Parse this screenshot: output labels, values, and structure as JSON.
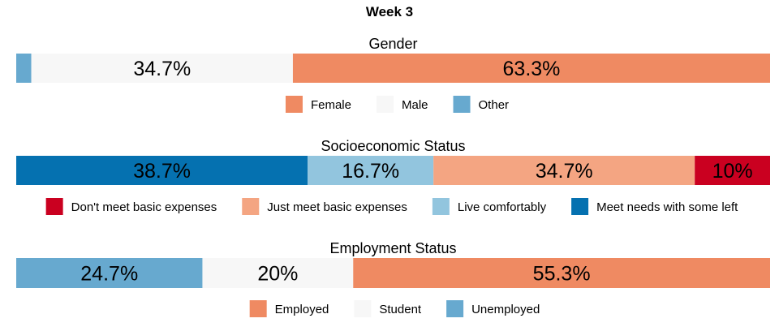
{
  "chart_data": {
    "type": "bar",
    "orientation": "horizontal-stacked-100",
    "title": "Week 3",
    "panels": [
      {
        "title": "Gender",
        "segments": [
          {
            "name": "Other",
            "value": 2.0,
            "label": "",
            "color": "#67a9cf"
          },
          {
            "name": "Male",
            "value": 34.7,
            "label": "34.7%",
            "color": "#f7f7f7"
          },
          {
            "name": "Female",
            "value": 63.3,
            "label": "63.3%",
            "color": "#ef8a62"
          }
        ],
        "legend": [
          {
            "name": "Female",
            "color": "#ef8a62"
          },
          {
            "name": "Male",
            "color": "#f7f7f7"
          },
          {
            "name": "Other",
            "color": "#67a9cf"
          }
        ]
      },
      {
        "title": "Socioeconomic Status",
        "segments": [
          {
            "name": "Meet needs with some left",
            "value": 38.7,
            "label": "38.7%",
            "color": "#0571b0"
          },
          {
            "name": "Live comfortably",
            "value": 16.7,
            "label": "16.7%",
            "color": "#92c5de"
          },
          {
            "name": "Just meet basic expenses",
            "value": 34.7,
            "label": "34.7%",
            "color": "#f4a582"
          },
          {
            "name": "Don't meet basic expenses",
            "value": 10.0,
            "label": "10%",
            "color": "#ca0020"
          }
        ],
        "legend": [
          {
            "name": "Don't meet basic expenses",
            "color": "#ca0020"
          },
          {
            "name": "Just meet basic expenses",
            "color": "#f4a582"
          },
          {
            "name": "Live comfortably",
            "color": "#92c5de"
          },
          {
            "name": "Meet needs with some left",
            "color": "#0571b0"
          }
        ]
      },
      {
        "title": "Employment Status",
        "segments": [
          {
            "name": "Unemployed",
            "value": 24.7,
            "label": "24.7%",
            "color": "#67a9cf"
          },
          {
            "name": "Student",
            "value": 20.0,
            "label": "20%",
            "color": "#f7f7f7"
          },
          {
            "name": "Employed",
            "value": 55.3,
            "label": "55.3%",
            "color": "#ef8a62"
          }
        ],
        "legend": [
          {
            "name": "Employed",
            "color": "#ef8a62"
          },
          {
            "name": "Student",
            "color": "#f7f7f7"
          },
          {
            "name": "Unemployed",
            "color": "#67a9cf"
          }
        ]
      }
    ],
    "xlim": [
      0,
      100
    ],
    "grid": false,
    "legend_position": "bottom"
  }
}
